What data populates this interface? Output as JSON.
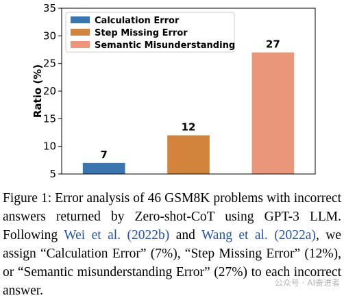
{
  "chart_data": {
    "type": "bar",
    "categories": [
      "Calculation Error",
      "Step Missing Error",
      "Semantic Misunderstanding"
    ],
    "values": [
      7,
      12,
      27
    ],
    "colors": [
      "#3a75af",
      "#d3843c",
      "#e9967a"
    ],
    "data_labels": [
      "7",
      "12",
      "27"
    ],
    "ylabel": "Ratio (%)",
    "ylim": [
      5,
      35
    ],
    "yticks": [
      "5",
      "10",
      "15",
      "20",
      "25",
      "30",
      "35"
    ],
    "legend": [
      "Calculation Error",
      "Step Missing Error",
      "Semantic Misunderstanding"
    ],
    "legend_position": "top-left",
    "grid": false
  },
  "caption": {
    "prefix": "Figure 1: Error analysis of 46 GSM8K problems with incorrect answers returned by Zero-shot-CoT using GPT-3 LLM. Following ",
    "cite1": "Wei et al. (2022b)",
    "mid": " and ",
    "cite2": "Wang et al. (2022a)",
    "suffix": ", we assign “Calculation Error” (7%), “Step Missing Error” (12%), or “Semantic misunderstanding Error” (27%) to each incorrect answer."
  },
  "watermark": "公众号 · AI奋进者"
}
